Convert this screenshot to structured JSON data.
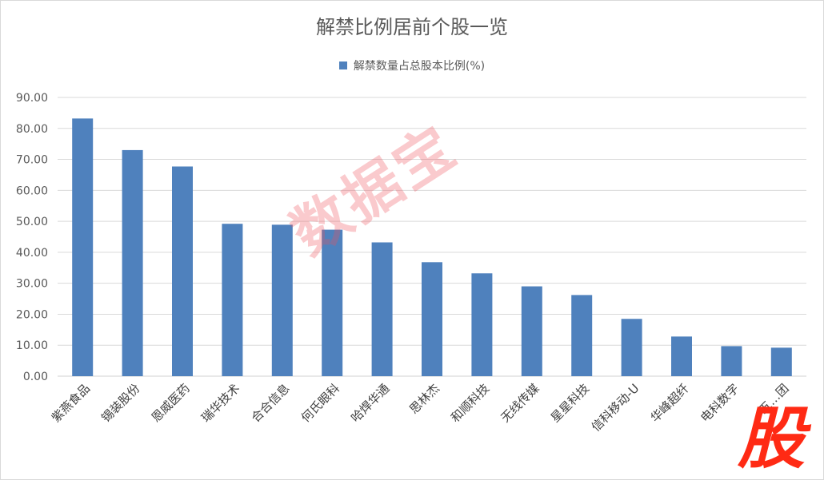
{
  "chart_data": {
    "type": "bar",
    "title": "解禁比例居前个股一览",
    "legend": {
      "position": "top",
      "entries": [
        "解禁数量占总股本比例(%)"
      ]
    },
    "series": [
      {
        "name": "解禁数量占总股本比例(%)",
        "color": "#4f81bd",
        "values": [
          83.2,
          73.0,
          67.7,
          49.2,
          48.9,
          47.3,
          43.2,
          36.8,
          33.2,
          29.0,
          26.2,
          18.5,
          12.8,
          9.7,
          9.2
        ]
      }
    ],
    "categories": [
      "紫燕食品",
      "锡装股份",
      "恩威医药",
      "瑞华技术",
      "合合信息",
      "何氏眼科",
      "哈焊华通",
      "思林杰",
      "和顺科技",
      "无线传媒",
      "星星科技",
      "信科移动-U",
      "华峰超纤",
      "电科数字",
      "五…团"
    ],
    "y_ticks": [
      "0.00",
      "10.00",
      "20.00",
      "30.00",
      "40.00",
      "50.00",
      "60.00",
      "70.00",
      "80.00",
      "90.00"
    ],
    "ylim": [
      0,
      90
    ],
    "grid": true,
    "xlabel": "",
    "ylabel": ""
  },
  "watermark": {
    "text": "数据宝"
  },
  "logo": {
    "text": "股"
  },
  "colors": {
    "bar": "#4f81bd",
    "grid": "#d9d9d9",
    "text": "#595959",
    "logo": "#ff2a14"
  }
}
